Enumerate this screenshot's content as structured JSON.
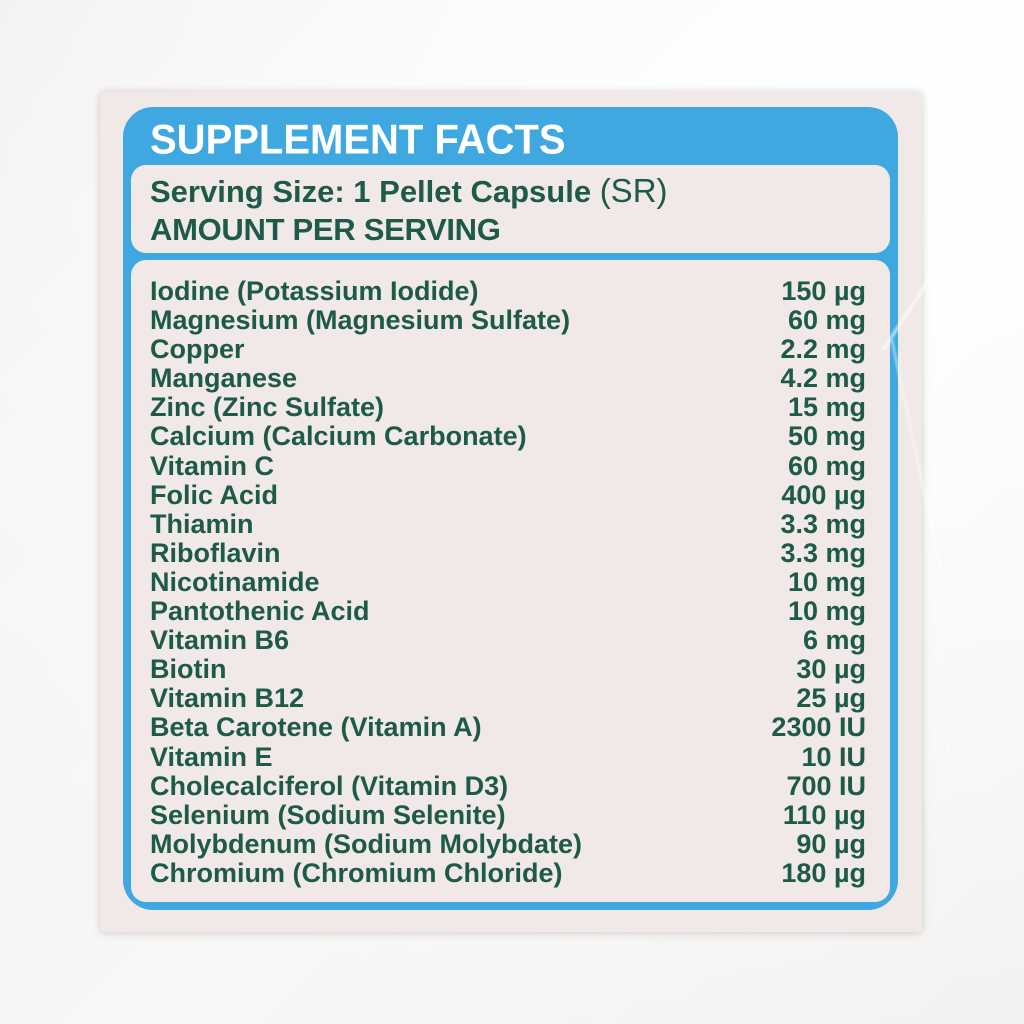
{
  "label": {
    "title": "SUPPLEMENT FACTS",
    "serving_size_line": "Serving Size: 1 Pellet Capsule",
    "serving_size_suffix": "(SR)",
    "amount_header": "AMOUNT PER SERVING",
    "nutrients": [
      {
        "name": "Iodine (Potassium Iodide)",
        "amount": "150 µg"
      },
      {
        "name": "Magnesium (Magnesium Sulfate)",
        "amount": "60 mg"
      },
      {
        "name": "Copper",
        "amount": "2.2 mg"
      },
      {
        "name": "Manganese",
        "amount": "4.2 mg"
      },
      {
        "name": "Zinc (Zinc Sulfate)",
        "amount": "15 mg"
      },
      {
        "name": "Calcium (Calcium Carbonate)",
        "amount": "50 mg"
      },
      {
        "name": "Vitamin C",
        "amount": "60 mg"
      },
      {
        "name": "Folic Acid",
        "amount": "400 µg"
      },
      {
        "name": "Thiamin",
        "amount": "3.3 mg"
      },
      {
        "name": "Riboflavin",
        "amount": "3.3 mg"
      },
      {
        "name": "Nicotinamide",
        "amount": "10 mg"
      },
      {
        "name": "Pantothenic Acid",
        "amount": "10 mg"
      },
      {
        "name": "Vitamin B6",
        "amount": "6 mg"
      },
      {
        "name": "Biotin",
        "amount": "30 µg"
      },
      {
        "name": "Vitamin B12",
        "amount": "25 µg"
      },
      {
        "name": "Beta Carotene (Vitamin A)",
        "amount": "2300 IU"
      },
      {
        "name": "Vitamin E",
        "amount": "10 IU"
      },
      {
        "name": "Cholecalciferol (Vitamin D3)",
        "amount": "700 IU"
      },
      {
        "name": "Selenium (Sodium Selenite)",
        "amount": "110 µg"
      },
      {
        "name": "Molybdenum (Sodium Molybdate)",
        "amount": "90 µg"
      },
      {
        "name": "Chromium (Chromium Chloride)",
        "amount": "180 µg"
      }
    ]
  },
  "colors": {
    "accent_blue": "#3fa8e1",
    "text_green": "#1d5a49",
    "band_text": "#ffffff",
    "sticker_bg": "#f0e9e7",
    "photo_bg": "#fdfdfd"
  }
}
